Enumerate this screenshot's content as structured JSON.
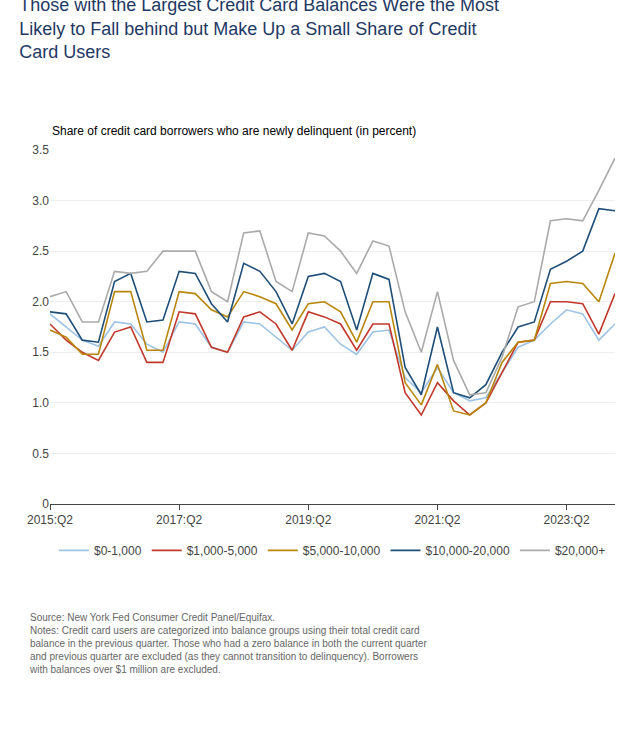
{
  "chart_data": {
    "type": "line",
    "title": "Those with the Largest Credit Card Balances Were the Most\nLikely to Fall behind but Make Up a Small Share of Credit\nCard Users",
    "ylabel": "Share of credit card borrowers who are newly delinquent (in percent)",
    "annotations": [
      "Source: New York Fed Consumer Credit Panel/Equifax.\nNotes: Credit card users are categorized into balance groups using their total credit card\nbalance in the previous quarter. Those who had a zero balance in both the current quarter\nand previous quarter are excluded (as they cannot transition to delinquency). Borrowers\nwith balances over $1 million are excluded."
    ],
    "categories": [
      "2015:Q2",
      null,
      null,
      null,
      null,
      null,
      null,
      null,
      "2017:Q2",
      null,
      null,
      null,
      null,
      null,
      null,
      null,
      "2019:Q2",
      null,
      null,
      null,
      null,
      null,
      null,
      null,
      "2021:Q2",
      null,
      null,
      null,
      null,
      null,
      null,
      null,
      "2023:Q2",
      null,
      null,
      null
    ],
    "series": [
      {
        "name": "$0-1,000",
        "color": "#9DC3E6",
        "values": [
          1.88,
          1.75,
          1.62,
          1.56,
          1.8,
          1.78,
          1.58,
          1.5,
          1.8,
          1.78,
          1.55,
          1.5,
          1.8,
          1.78,
          1.65,
          1.52,
          1.7,
          1.75,
          1.58,
          1.48,
          1.7,
          1.72,
          1.25,
          1.1,
          1.35,
          1.1,
          1.02,
          1.05,
          1.3,
          1.55,
          1.62,
          1.78,
          1.92,
          1.88,
          1.62,
          1.78
        ]
      },
      {
        "name": "$1,000-5,000",
        "color": "#C0392B",
        "values": [
          1.78,
          1.62,
          1.5,
          1.42,
          1.7,
          1.75,
          1.4,
          1.4,
          1.9,
          1.88,
          1.55,
          1.5,
          1.85,
          1.9,
          1.78,
          1.52,
          1.9,
          1.85,
          1.78,
          1.52,
          1.78,
          1.78,
          1.1,
          0.88,
          1.2,
          1.02,
          0.88,
          1.0,
          1.3,
          1.6,
          1.62,
          2.0,
          2.0,
          1.98,
          1.68,
          2.08
        ]
      },
      {
        "name": "$5,000-10,000",
        "color": "#B8860B",
        "values": [
          1.72,
          1.65,
          1.48,
          1.48,
          2.1,
          2.1,
          1.52,
          1.52,
          2.1,
          2.08,
          1.92,
          1.85,
          2.1,
          2.05,
          1.98,
          1.72,
          1.98,
          2.0,
          1.9,
          1.6,
          2.0,
          2.0,
          1.2,
          0.98,
          1.38,
          0.92,
          0.88,
          1.0,
          1.4,
          1.6,
          1.62,
          2.18,
          2.2,
          2.18,
          2.0,
          2.48
        ]
      },
      {
        "name": "$10,000-20,000",
        "color": "#1F4E79",
        "values": [
          1.9,
          1.88,
          1.62,
          1.6,
          2.2,
          2.28,
          1.8,
          1.82,
          2.3,
          2.28,
          1.98,
          1.8,
          2.38,
          2.3,
          2.1,
          1.78,
          2.25,
          2.28,
          2.2,
          1.72,
          2.28,
          2.22,
          1.35,
          1.08,
          1.75,
          1.1,
          1.05,
          1.18,
          1.5,
          1.75,
          1.8,
          2.32,
          2.4,
          2.5,
          2.92,
          2.9
        ]
      },
      {
        "name": "$20,000+",
        "color": "#AAAAAA",
        "values": [
          2.05,
          2.1,
          1.8,
          1.8,
          2.3,
          2.28,
          2.3,
          2.5,
          2.5,
          2.5,
          2.1,
          2.0,
          2.68,
          2.7,
          2.2,
          2.1,
          2.68,
          2.65,
          2.5,
          2.28,
          2.6,
          2.55,
          1.9,
          1.5,
          2.1,
          1.42,
          1.08,
          1.1,
          1.45,
          1.95,
          2.0,
          2.8,
          2.82,
          2.8,
          3.1,
          3.42
        ]
      }
    ],
    "ylim": [
      0,
      3.5
    ],
    "yticks": [
      0,
      0.5,
      {
        "value": 1,
        "label": "1.0"
      },
      1.5,
      {
        "value": 2,
        "label": "2.0"
      },
      2.5,
      {
        "value": 3,
        "label": "3.0"
      },
      3.5
    ],
    "grid": true,
    "legend": "bottom"
  }
}
